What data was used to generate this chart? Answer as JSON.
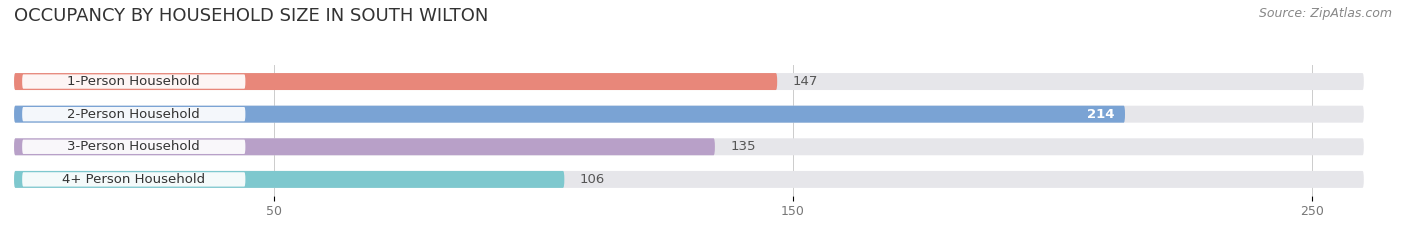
{
  "title": "OCCUPANCY BY HOUSEHOLD SIZE IN SOUTH WILTON",
  "source": "Source: ZipAtlas.com",
  "categories": [
    "1-Person Household",
    "2-Person Household",
    "3-Person Household",
    "4+ Person Household"
  ],
  "values": [
    147,
    214,
    135,
    106
  ],
  "bar_colors": [
    "#E8877A",
    "#7AA3D4",
    "#B8A0C8",
    "#7EC8CE"
  ],
  "bar_bg_color": "#E6E6EA",
  "label_bg_color": "#FFFFFF",
  "label_inside_colors": [
    "#555555",
    "#ffffff",
    "#555555",
    "#555555"
  ],
  "xlim_max": 260,
  "xticks": [
    50,
    150,
    250
  ],
  "title_fontsize": 13,
  "source_fontsize": 9,
  "bar_label_fontsize": 9.5,
  "category_fontsize": 9.5,
  "figsize": [
    14.06,
    2.33
  ],
  "dpi": 100,
  "bg_color": "#FFFFFF"
}
